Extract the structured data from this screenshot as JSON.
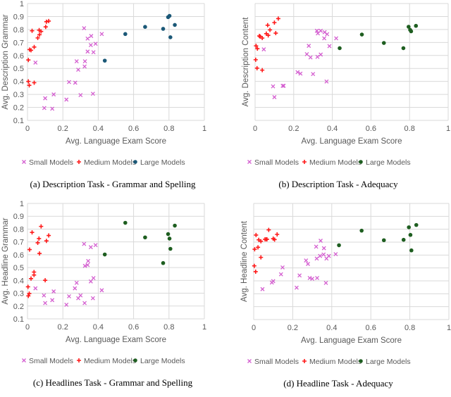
{
  "colors": {
    "small": "#d45fd0",
    "medium": "#ff1a1a",
    "large_a": "#1b5877",
    "large_other": "#1e5e20"
  },
  "chart_data": [
    {
      "type": "scatter",
      "caption": "(a) Description Task - Grammar and Spelling",
      "xlabel": "Avg. Language Exam Score",
      "ylabel": "Avg. Description Grammar",
      "xlim": [
        0,
        1
      ],
      "ylim": [
        0.1,
        1
      ],
      "x_ticks": [
        "0",
        "0.2",
        "0.4",
        "0.6",
        "0.8",
        "1"
      ],
      "y_ticks": [
        "0.1",
        "0.2",
        "0.3",
        "0.4",
        "0.5",
        "0.6",
        "0.7",
        "0.8",
        "0.9",
        "1"
      ],
      "grid": true,
      "legend": [
        "Small Models",
        "Medium Models",
        "Large Models"
      ],
      "legend_position": "bottom",
      "large_color": "large_a",
      "series": [
        {
          "name": "Small Models",
          "points": [
            [
              0.045,
              0.545
            ],
            [
              0.1,
              0.27
            ],
            [
              0.095,
              0.195
            ],
            [
              0.14,
              0.19
            ],
            [
              0.148,
              0.3
            ],
            [
              0.22,
              0.26
            ],
            [
              0.235,
              0.395
            ],
            [
              0.27,
              0.39
            ],
            [
              0.278,
              0.555
            ],
            [
              0.287,
              0.49
            ],
            [
              0.3,
              0.295
            ],
            [
              0.32,
              0.81
            ],
            [
              0.325,
              0.555
            ],
            [
              0.323,
              0.515
            ],
            [
              0.34,
              0.73
            ],
            [
              0.34,
              0.63
            ],
            [
              0.358,
              0.68
            ],
            [
              0.36,
              0.75
            ],
            [
              0.37,
              0.305
            ],
            [
              0.373,
              0.625
            ],
            [
              0.385,
              0.69
            ],
            [
              0.42,
              0.765
            ]
          ]
        },
        {
          "name": "Medium Models",
          "points": [
            [
              0.005,
              0.565
            ],
            [
              0.005,
              0.4
            ],
            [
              0.01,
              0.37
            ],
            [
              0.012,
              0.645
            ],
            [
              0.02,
              0.64
            ],
            [
              0.026,
              0.79
            ],
            [
              0.038,
              0.39
            ],
            [
              0.038,
              0.665
            ],
            [
              0.058,
              0.735
            ],
            [
              0.066,
              0.795
            ],
            [
              0.068,
              0.76
            ],
            [
              0.077,
              0.785
            ],
            [
              0.103,
              0.82
            ],
            [
              0.107,
              0.86
            ],
            [
              0.12,
              0.865
            ]
          ]
        },
        {
          "name": "Large Models",
          "points": [
            [
              0.437,
              0.56
            ],
            [
              0.553,
              0.765
            ],
            [
              0.665,
              0.82
            ],
            [
              0.767,
              0.805
            ],
            [
              0.795,
              0.895
            ],
            [
              0.803,
              0.905
            ],
            [
              0.808,
              0.74
            ],
            [
              0.833,
              0.835
            ]
          ]
        }
      ]
    },
    {
      "type": "scatter",
      "caption": "(b) Description Task - Adequacy",
      "xlabel": "Avg. Language Exam Score",
      "ylabel": "Avg. Description Content",
      "xlim": [
        0,
        1
      ],
      "ylim": [
        0.1,
        1
      ],
      "x_ticks": [
        "0",
        "0.2",
        "0.4",
        "0.6",
        "0.8",
        "1"
      ],
      "y_ticks": [],
      "grid": true,
      "legend": [
        "Small Models",
        "Medium Models",
        "Large Models"
      ],
      "legend_position": "bottom",
      "large_color": "large_other",
      "series": [
        {
          "name": "Small Models",
          "points": [
            [
              0.045,
              0.647
            ],
            [
              0.093,
              0.362
            ],
            [
              0.1,
              0.279
            ],
            [
              0.143,
              0.366
            ],
            [
              0.148,
              0.366
            ],
            [
              0.22,
              0.471
            ],
            [
              0.235,
              0.46
            ],
            [
              0.268,
              0.61
            ],
            [
              0.278,
              0.674
            ],
            [
              0.287,
              0.585
            ],
            [
              0.3,
              0.457
            ],
            [
              0.32,
              0.79
            ],
            [
              0.325,
              0.77
            ],
            [
              0.323,
              0.589
            ],
            [
              0.34,
              0.79
            ],
            [
              0.34,
              0.607
            ],
            [
              0.358,
              0.732
            ],
            [
              0.36,
              0.779
            ],
            [
              0.37,
              0.399
            ],
            [
              0.373,
              0.764
            ],
            [
              0.385,
              0.672
            ],
            [
              0.42,
              0.732
            ]
          ]
        },
        {
          "name": "Medium Models",
          "points": [
            [
              0.003,
              0.567
            ],
            [
              0.005,
              0.674
            ],
            [
              0.01,
              0.502
            ],
            [
              0.012,
              0.652
            ],
            [
              0.022,
              0.75
            ],
            [
              0.026,
              0.746
            ],
            [
              0.037,
              0.487
            ],
            [
              0.037,
              0.734
            ],
            [
              0.058,
              0.768
            ],
            [
              0.065,
              0.833
            ],
            [
              0.068,
              0.755
            ],
            [
              0.077,
              0.797
            ],
            [
              0.1,
              0.853
            ],
            [
              0.107,
              0.772
            ],
            [
              0.12,
              0.884
            ]
          ]
        },
        {
          "name": "Large Models",
          "points": [
            [
              0.438,
              0.656
            ],
            [
              0.553,
              0.761
            ],
            [
              0.667,
              0.696
            ],
            [
              0.768,
              0.656
            ],
            [
              0.795,
              0.821
            ],
            [
              0.803,
              0.797
            ],
            [
              0.808,
              0.786
            ],
            [
              0.833,
              0.828
            ]
          ]
        }
      ]
    },
    {
      "type": "scatter",
      "caption": "(c) Headlines Task - Grammar and Spelling",
      "xlabel": "Avg. Language Exam Score",
      "ylabel": "Avg. Headline Grammar",
      "xlim": [
        0,
        1
      ],
      "ylim": [
        0.1,
        1
      ],
      "x_ticks": [
        "0",
        "0.2",
        "0.4",
        "0.6",
        "0.8",
        "1"
      ],
      "y_ticks": [
        "0.1",
        "0.2",
        "0.3",
        "0.4",
        "0.5",
        "0.6",
        "0.7",
        "0.8",
        "0.9",
        "1"
      ],
      "grid": true,
      "legend": [
        "Small Models",
        "Medium Models",
        "Large Models"
      ],
      "legend_position": "bottom",
      "large_color": "large_other",
      "series": [
        {
          "name": "Small Models",
          "points": [
            [
              0.045,
              0.338
            ],
            [
              0.093,
              0.283
            ],
            [
              0.1,
              0.223
            ],
            [
              0.14,
              0.246
            ],
            [
              0.148,
              0.314
            ],
            [
              0.22,
              0.21
            ],
            [
              0.235,
              0.276
            ],
            [
              0.268,
              0.338
            ],
            [
              0.278,
              0.381
            ],
            [
              0.287,
              0.261
            ],
            [
              0.3,
              0.283
            ],
            [
              0.32,
              0.684
            ],
            [
              0.323,
              0.223
            ],
            [
              0.325,
              0.513
            ],
            [
              0.34,
              0.52
            ],
            [
              0.343,
              0.551
            ],
            [
              0.358,
              0.659
            ],
            [
              0.358,
              0.392
            ],
            [
              0.37,
              0.261
            ],
            [
              0.373,
              0.418
            ],
            [
              0.385,
              0.675
            ],
            [
              0.42,
              0.323
            ]
          ]
        },
        {
          "name": "Medium Models",
          "points": [
            [
              0.003,
              0.35
            ],
            [
              0.005,
              0.279
            ],
            [
              0.01,
              0.297
            ],
            [
              0.012,
              0.64
            ],
            [
              0.02,
              0.414
            ],
            [
              0.026,
              0.774
            ],
            [
              0.037,
              0.465
            ],
            [
              0.037,
              0.442
            ],
            [
              0.058,
              0.693
            ],
            [
              0.065,
              0.726
            ],
            [
              0.068,
              0.61
            ],
            [
              0.077,
              0.821
            ],
            [
              0.1,
              0.401
            ],
            [
              0.107,
              0.708
            ],
            [
              0.12,
              0.75
            ]
          ]
        },
        {
          "name": "Large Models",
          "points": [
            [
              0.437,
              0.602
            ],
            [
              0.553,
              0.849
            ],
            [
              0.665,
              0.735
            ],
            [
              0.767,
              0.535
            ],
            [
              0.795,
              0.761
            ],
            [
              0.803,
              0.726
            ],
            [
              0.808,
              0.646
            ],
            [
              0.833,
              0.827
            ]
          ]
        }
      ]
    },
    {
      "type": "scatter",
      "caption": "(d) Headline Task - Adequacy",
      "xlabel": "Avg. Language Exam Score",
      "ylabel": "Avg. Headline Content",
      "xlim": [
        0,
        1
      ],
      "ylim": [
        0.1,
        1
      ],
      "x_ticks": [
        "0",
        "0.2",
        "0.4",
        "0.6",
        "0.8",
        "1"
      ],
      "y_ticks": [],
      "grid": true,
      "legend": [
        "Small Models",
        "Medium Models",
        "Large Models"
      ],
      "legend_position": "bottom",
      "large_color": "large_other",
      "series": [
        {
          "name": "Small Models",
          "points": [
            [
              0.045,
              0.336
            ],
            [
              0.093,
              0.387
            ],
            [
              0.1,
              0.398
            ],
            [
              0.14,
              0.451
            ],
            [
              0.148,
              0.504
            ],
            [
              0.22,
              0.347
            ],
            [
              0.235,
              0.442
            ],
            [
              0.268,
              0.558
            ],
            [
              0.278,
              0.531
            ],
            [
              0.287,
              0.422
            ],
            [
              0.3,
              0.416
            ],
            [
              0.32,
              0.665
            ],
            [
              0.323,
              0.573
            ],
            [
              0.325,
              0.422
            ],
            [
              0.34,
              0.593
            ],
            [
              0.343,
              0.711
            ],
            [
              0.358,
              0.604
            ],
            [
              0.36,
              0.653
            ],
            [
              0.37,
              0.384
            ],
            [
              0.373,
              0.573
            ],
            [
              0.385,
              0.593
            ],
            [
              0.42,
              0.607
            ]
          ]
        },
        {
          "name": "Medium Models",
          "points": [
            [
              0.003,
              0.516
            ],
            [
              0.005,
              0.645
            ],
            [
              0.01,
              0.471
            ],
            [
              0.012,
              0.755
            ],
            [
              0.022,
              0.66
            ],
            [
              0.026,
              0.718
            ],
            [
              0.037,
              0.582
            ],
            [
              0.037,
              0.707
            ],
            [
              0.058,
              0.722
            ],
            [
              0.065,
              0.722
            ],
            [
              0.068,
              0.722
            ],
            [
              0.077,
              0.795
            ],
            [
              0.1,
              0.727
            ],
            [
              0.107,
              0.72
            ],
            [
              0.12,
              0.76
            ]
          ]
        },
        {
          "name": "Large Models",
          "points": [
            [
              0.437,
              0.676
            ],
            [
              0.553,
              0.789
            ],
            [
              0.667,
              0.715
            ],
            [
              0.768,
              0.718
            ],
            [
              0.795,
              0.815
            ],
            [
              0.803,
              0.756
            ],
            [
              0.808,
              0.636
            ],
            [
              0.833,
              0.833
            ]
          ]
        }
      ]
    }
  ]
}
